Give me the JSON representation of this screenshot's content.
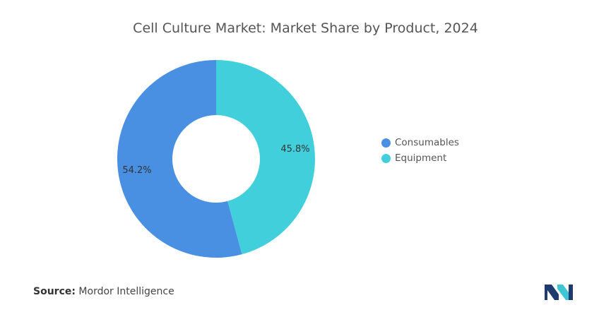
{
  "colors": {
    "consumables": "#4a90e2",
    "equipment": "#41d0db",
    "logo_dark": "#1f3a6e",
    "logo_light": "#3fc6d4"
  },
  "chart_data": {
    "type": "pie",
    "donut": true,
    "title": "Cell Culture Market: Market Share by Product, 2024",
    "legend_position": "right",
    "slices": [
      {
        "name": "Consumables",
        "value": 54.2,
        "label": "54.2%",
        "color": "#4a90e2"
      },
      {
        "name": "Equipment",
        "value": 45.8,
        "label": "45.8%",
        "color": "#41d0db"
      }
    ]
  },
  "footer": {
    "source_label": "Source:",
    "source_text": "Mordor Intelligence",
    "logo_icon": "mordor-intelligence-logo"
  }
}
